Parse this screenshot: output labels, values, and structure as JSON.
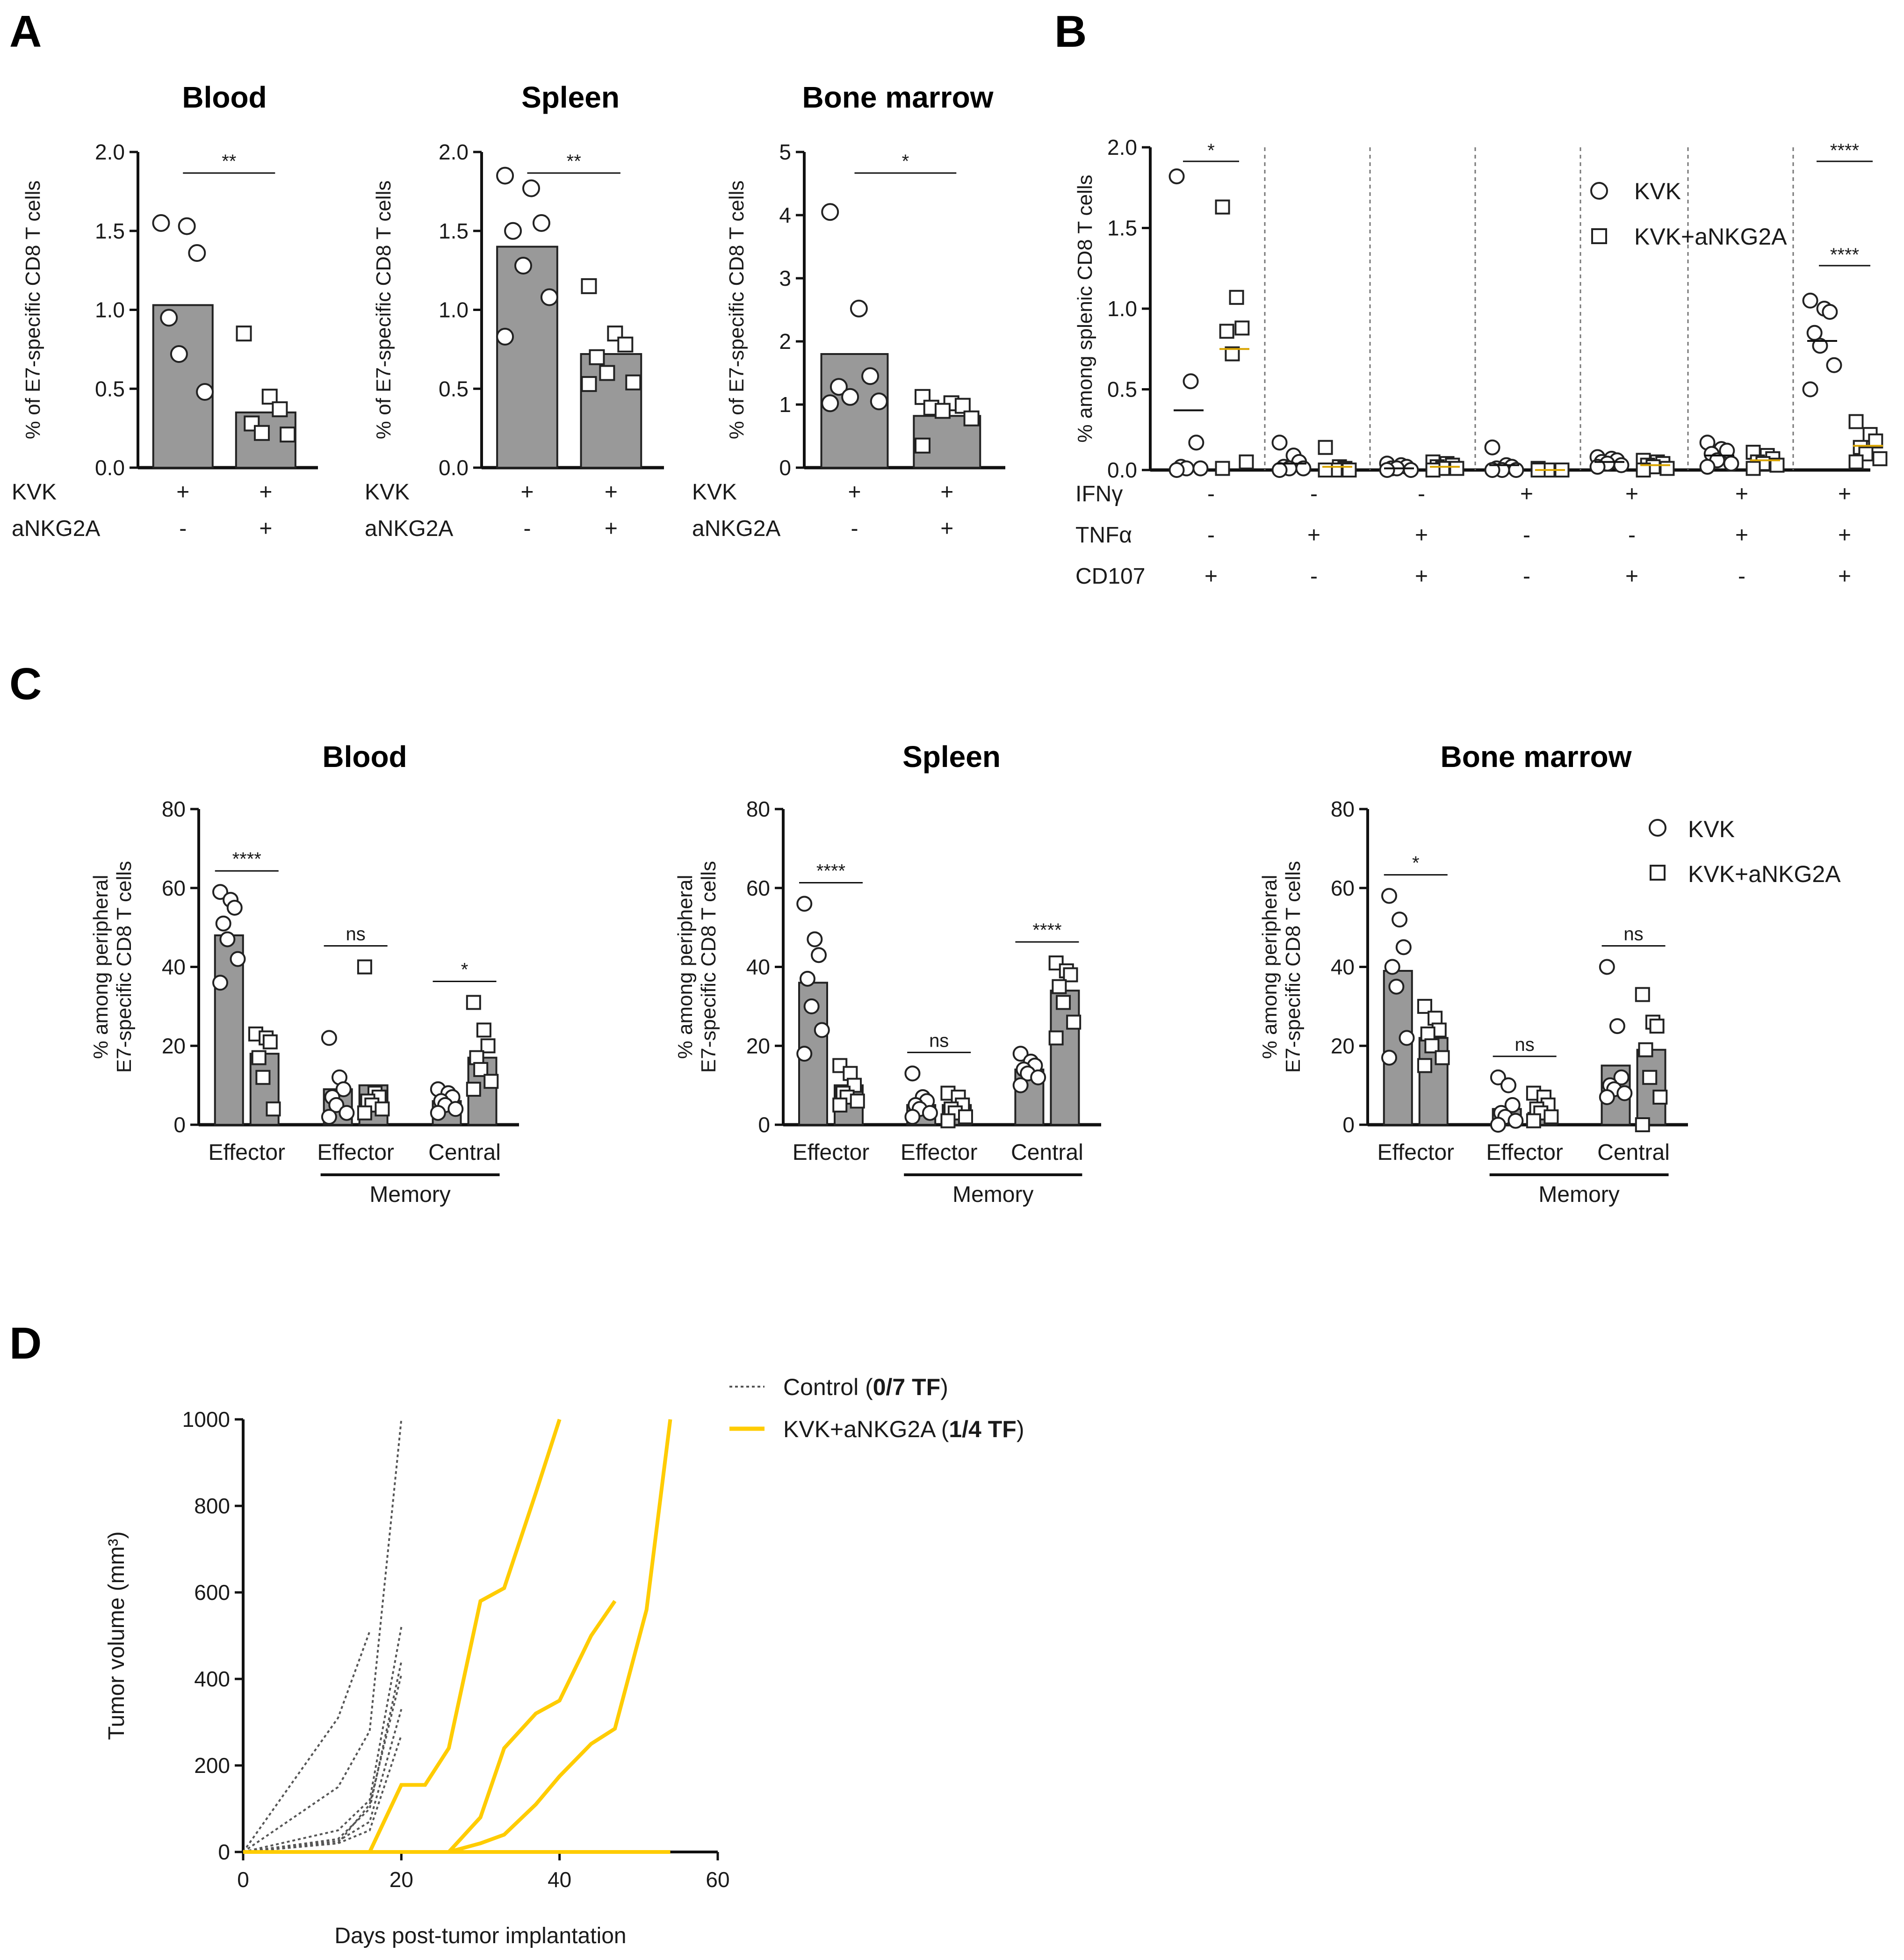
{
  "panels": {
    "A": "A",
    "B": "B",
    "C": "C",
    "D": "D"
  },
  "chart_data": [
    {
      "id": "A1",
      "type": "bar",
      "panel": "A",
      "title": "Blood",
      "ylabel": "% of E7-specific CD8 T cells",
      "ylim": [
        0,
        2.0
      ],
      "yticks": [
        "0.0",
        "0.5",
        "1.0",
        "1.5",
        "2.0"
      ],
      "condition_rows": [
        {
          "name": "KVK",
          "values": [
            "+",
            "+"
          ]
        },
        {
          "name": "aNKG2A",
          "values": [
            "-",
            "+"
          ]
        }
      ],
      "groups": [
        {
          "bar": 1.03,
          "marker": "circle",
          "points": [
            1.55,
            1.53,
            1.36,
            0.95,
            0.72,
            0.48
          ]
        },
        {
          "bar": 0.35,
          "marker": "square",
          "points": [
            0.85,
            0.45,
            0.37,
            0.28,
            0.22,
            0.21
          ]
        }
      ],
      "annotations": [
        {
          "text": "**",
          "from": 0,
          "to": 1
        }
      ]
    },
    {
      "id": "A2",
      "type": "bar",
      "panel": "A",
      "title": "Spleen",
      "ylabel": "% of E7-specific CD8 T cells",
      "ylim": [
        0,
        2.0
      ],
      "yticks": [
        "0.0",
        "0.5",
        "1.0",
        "1.5",
        "2.0"
      ],
      "condition_rows": [
        {
          "name": "KVK",
          "values": [
            "+",
            "+"
          ]
        },
        {
          "name": "aNKG2A",
          "values": [
            "-",
            "+"
          ]
        }
      ],
      "groups": [
        {
          "bar": 1.4,
          "marker": "circle",
          "points": [
            1.85,
            1.77,
            1.55,
            1.5,
            1.28,
            1.08,
            0.83
          ]
        },
        {
          "bar": 0.72,
          "marker": "square",
          "points": [
            1.15,
            0.85,
            0.78,
            0.7,
            0.6,
            0.54,
            0.53
          ]
        }
      ],
      "annotations": [
        {
          "text": "**",
          "from": 0,
          "to": 1
        }
      ]
    },
    {
      "id": "A3",
      "type": "bar",
      "panel": "A",
      "title": "Bone marrow",
      "ylabel": "% of E7-specific CD8 T cells",
      "ylim": [
        0,
        5
      ],
      "yticks": [
        "0",
        "1",
        "2",
        "3",
        "4",
        "5"
      ],
      "condition_rows": [
        {
          "name": "KVK",
          "values": [
            "+",
            "+"
          ]
        },
        {
          "name": "aNKG2A",
          "values": [
            "-",
            "+"
          ]
        }
      ],
      "groups": [
        {
          "bar": 1.8,
          "marker": "circle",
          "points": [
            4.05,
            2.52,
            1.45,
            1.28,
            1.12,
            1.05,
            1.02
          ]
        },
        {
          "bar": 0.82,
          "marker": "square",
          "points": [
            1.12,
            1.02,
            0.98,
            0.95,
            0.9,
            0.78,
            0.35
          ]
        }
      ],
      "annotations": [
        {
          "text": "*",
          "from": 0,
          "to": 1
        }
      ]
    },
    {
      "id": "B",
      "type": "scatter",
      "panel": "B",
      "ylabel": "% among splenic CD8 T cells",
      "ylim": [
        0,
        2.0
      ],
      "yticks": [
        "0.0",
        "0.5",
        "1.0",
        "1.5",
        "2.0"
      ],
      "condition_rows": [
        {
          "name": "IFNγ",
          "values": [
            "-",
            "-",
            "-",
            "+",
            "+",
            "+",
            "+"
          ]
        },
        {
          "name": "TNFα",
          "values": [
            "-",
            "+",
            "+",
            "-",
            "-",
            "+",
            "+"
          ]
        },
        {
          "name": "CD107",
          "values": [
            "+",
            "-",
            "+",
            "-",
            "+",
            "-",
            "+"
          ]
        }
      ],
      "legend": [
        "KVK",
        "KVK+aNKG2A"
      ],
      "groups": [
        {
          "kvk": [
            1.82,
            0.55,
            0.17,
            0.02,
            0.01,
            0.01,
            0.0
          ],
          "kvk_mean": 0.37,
          "aNKG2A": [
            1.63,
            1.07,
            0.88,
            0.86,
            0.72,
            0.05,
            0.01
          ],
          "aNKG2A_mean": 0.75
        },
        {
          "kvk": [
            0.17,
            0.09,
            0.05,
            0.02,
            0.01,
            0.01,
            0.0
          ],
          "kvk_mean": 0.04,
          "aNKG2A": [
            0.14,
            0.02,
            0.01,
            0.0,
            0.0,
            0.0,
            0.0
          ],
          "aNKG2A_mean": 0.02
        },
        {
          "kvk": [
            0.04,
            0.03,
            0.02,
            0.01,
            0.01,
            0.0,
            0.0
          ],
          "kvk_mean": 0.01,
          "aNKG2A": [
            0.05,
            0.04,
            0.03,
            0.02,
            0.01,
            0.01,
            0.0
          ],
          "aNKG2A_mean": 0.02
        },
        {
          "kvk": [
            0.14,
            0.03,
            0.02,
            0.01,
            0.0,
            0.0,
            0.0
          ],
          "kvk_mean": 0.03,
          "aNKG2A": [
            0.01,
            0.0,
            0.0,
            0.0,
            0.0,
            0.0,
            0.0
          ],
          "aNKG2A_mean": 0.0
        },
        {
          "kvk": [
            0.08,
            0.07,
            0.06,
            0.05,
            0.04,
            0.03,
            0.02
          ],
          "kvk_mean": 0.05,
          "aNKG2A": [
            0.06,
            0.05,
            0.04,
            0.03,
            0.02,
            0.01,
            0.0
          ],
          "aNKG2A_mean": 0.03
        },
        {
          "kvk": [
            0.17,
            0.13,
            0.12,
            0.1,
            0.06,
            0.04,
            0.02
          ],
          "kvk_mean": 0.09,
          "aNKG2A": [
            0.11,
            0.09,
            0.07,
            0.05,
            0.04,
            0.03,
            0.01
          ],
          "aNKG2A_mean": 0.06
        },
        {
          "kvk": [
            1.05,
            1.0,
            0.98,
            0.85,
            0.77,
            0.65,
            0.5
          ],
          "kvk_mean": 0.8,
          "aNKG2A": [
            0.3,
            0.22,
            0.18,
            0.14,
            0.1,
            0.07,
            0.05
          ],
          "aNKG2A_mean": 0.15
        }
      ],
      "annotations": [
        {
          "text": "*",
          "group": 0
        },
        {
          "text": "****",
          "group": 6
        }
      ]
    },
    {
      "id": "C1",
      "type": "bar",
      "panel": "C",
      "title": "Blood",
      "ylabel_lines": [
        "% among peripheral",
        "E7-specific CD8 T cells"
      ],
      "ylim": [
        0,
        80
      ],
      "yticks": [
        "0",
        "20",
        "40",
        "60",
        "80"
      ],
      "categories": [
        "Effector",
        "Effector",
        "Central"
      ],
      "bracket_label": "Memory",
      "groups": [
        {
          "kvk_bar": 48,
          "kvk": [
            59,
            57,
            55,
            51,
            47,
            42,
            36
          ],
          "ank_bar": 18,
          "ank": [
            23,
            22,
            21,
            17,
            12,
            4
          ]
        },
        {
          "kvk_bar": 9,
          "kvk": [
            22,
            12,
            9,
            7,
            5,
            3,
            2
          ],
          "ank_bar": 10,
          "ank": [
            40,
            8,
            7,
            6,
            5,
            4,
            3
          ]
        },
        {
          "kvk_bar": 6,
          "kvk": [
            9,
            8,
            7,
            6,
            5,
            4,
            3
          ],
          "ank_bar": 17,
          "ank": [
            31,
            24,
            20,
            17,
            14,
            11,
            9
          ]
        }
      ],
      "annotations": [
        "****",
        "ns",
        "*"
      ]
    },
    {
      "id": "C2",
      "type": "bar",
      "panel": "C",
      "title": "Spleen",
      "ylabel_lines": [
        "% among peripheral",
        "E7-specific CD8 T cells"
      ],
      "ylim": [
        0,
        80
      ],
      "yticks": [
        "0",
        "20",
        "40",
        "60",
        "80"
      ],
      "categories": [
        "Effector",
        "Effector",
        "Central"
      ],
      "bracket_label": "Memory",
      "groups": [
        {
          "kvk_bar": 36,
          "kvk": [
            56,
            47,
            43,
            37,
            30,
            24,
            18
          ],
          "ank_bar": 10,
          "ank": [
            15,
            13,
            10,
            8,
            7,
            6,
            5
          ]
        },
        {
          "kvk_bar": 5,
          "kvk": [
            13,
            7,
            6,
            5,
            4,
            3,
            2
          ],
          "ank_bar": 5,
          "ank": [
            8,
            7,
            5,
            4,
            3,
            2,
            1
          ]
        },
        {
          "kvk_bar": 14,
          "kvk": [
            18,
            16,
            15,
            14,
            13,
            12,
            10
          ],
          "ank_bar": 34,
          "ank": [
            41,
            39,
            38,
            35,
            31,
            26,
            22
          ]
        }
      ],
      "annotations": [
        "****",
        "ns",
        "****"
      ]
    },
    {
      "id": "C3",
      "type": "bar",
      "panel": "C",
      "title": "Bone marrow",
      "ylabel_lines": [
        "% among peripheral",
        "E7-specific CD8 T cells"
      ],
      "ylim": [
        0,
        80
      ],
      "yticks": [
        "0",
        "20",
        "40",
        "60",
        "80"
      ],
      "categories": [
        "Effector",
        "Effector",
        "Central"
      ],
      "bracket_label": "Memory",
      "legend": [
        "KVK",
        "KVK+aNKG2A"
      ],
      "groups": [
        {
          "kvk_bar": 39,
          "kvk": [
            58,
            52,
            45,
            40,
            35,
            22,
            17
          ],
          "ank_bar": 22,
          "ank": [
            30,
            27,
            24,
            23,
            20,
            17,
            15
          ]
        },
        {
          "kvk_bar": 4,
          "kvk": [
            12,
            10,
            5,
            3,
            2,
            1,
            0
          ],
          "ank_bar": 3,
          "ank": [
            8,
            7,
            5,
            4,
            3,
            2,
            1
          ]
        },
        {
          "kvk_bar": 15,
          "kvk": [
            40,
            25,
            12,
            10,
            9,
            8,
            7
          ],
          "ank_bar": 19,
          "ank": [
            33,
            26,
            25,
            19,
            12,
            7,
            0
          ]
        }
      ],
      "annotations": [
        "*",
        "ns",
        "ns"
      ]
    },
    {
      "id": "D",
      "type": "line",
      "panel": "D",
      "xlabel": "Days post-tumor implantation",
      "ylabel": "Tumor volume (mm³)",
      "xlim": [
        0,
        60
      ],
      "ylim": [
        0,
        1000
      ],
      "xticks": [
        "0",
        "20",
        "40",
        "60"
      ],
      "yticks": [
        "0",
        "200",
        "400",
        "600",
        "800",
        "1000"
      ],
      "legend": [
        {
          "name": "Control",
          "bold": "0/7 TF",
          "color": "#555555",
          "style": "dashed"
        },
        {
          "name": "KVK+aNKG2A",
          "bold": "1/4 TF",
          "color": "#FFCC00",
          "style": "solid"
        }
      ],
      "series": [
        {
          "group": "control",
          "x": [
            0,
            12,
            16
          ],
          "y": [
            0,
            310,
            510
          ]
        },
        {
          "group": "control",
          "x": [
            0,
            12,
            16,
            20
          ],
          "y": [
            0,
            150,
            280,
            1000
          ]
        },
        {
          "group": "control",
          "x": [
            0,
            12,
            16,
            20
          ],
          "y": [
            0,
            50,
            120,
            520
          ]
        },
        {
          "group": "control",
          "x": [
            0,
            12,
            16,
            20
          ],
          "y": [
            0,
            30,
            100,
            440
          ]
        },
        {
          "group": "control",
          "x": [
            0,
            12,
            16,
            20
          ],
          "y": [
            0,
            20,
            110,
            410
          ]
        },
        {
          "group": "control",
          "x": [
            0,
            12,
            16,
            20
          ],
          "y": [
            0,
            25,
            70,
            330
          ]
        },
        {
          "group": "control",
          "x": [
            0,
            12,
            16,
            20
          ],
          "y": [
            0,
            20,
            50,
            270
          ]
        },
        {
          "group": "kvk",
          "x": [
            0,
            16,
            20,
            23,
            26,
            30,
            33,
            37,
            40
          ],
          "y": [
            0,
            0,
            155,
            155,
            240,
            580,
            610,
            830,
            1000
          ]
        },
        {
          "group": "kvk",
          "x": [
            0,
            26,
            30,
            33,
            37,
            40,
            44,
            47
          ],
          "y": [
            0,
            0,
            80,
            240,
            320,
            350,
            500,
            580
          ]
        },
        {
          "group": "kvk",
          "x": [
            0,
            26,
            30,
            33,
            37,
            40,
            44,
            47,
            51,
            54
          ],
          "y": [
            0,
            0,
            20,
            40,
            110,
            175,
            250,
            285,
            560,
            1000
          ]
        },
        {
          "group": "kvk",
          "x": [
            0,
            54
          ],
          "y": [
            0,
            0
          ]
        }
      ]
    }
  ]
}
